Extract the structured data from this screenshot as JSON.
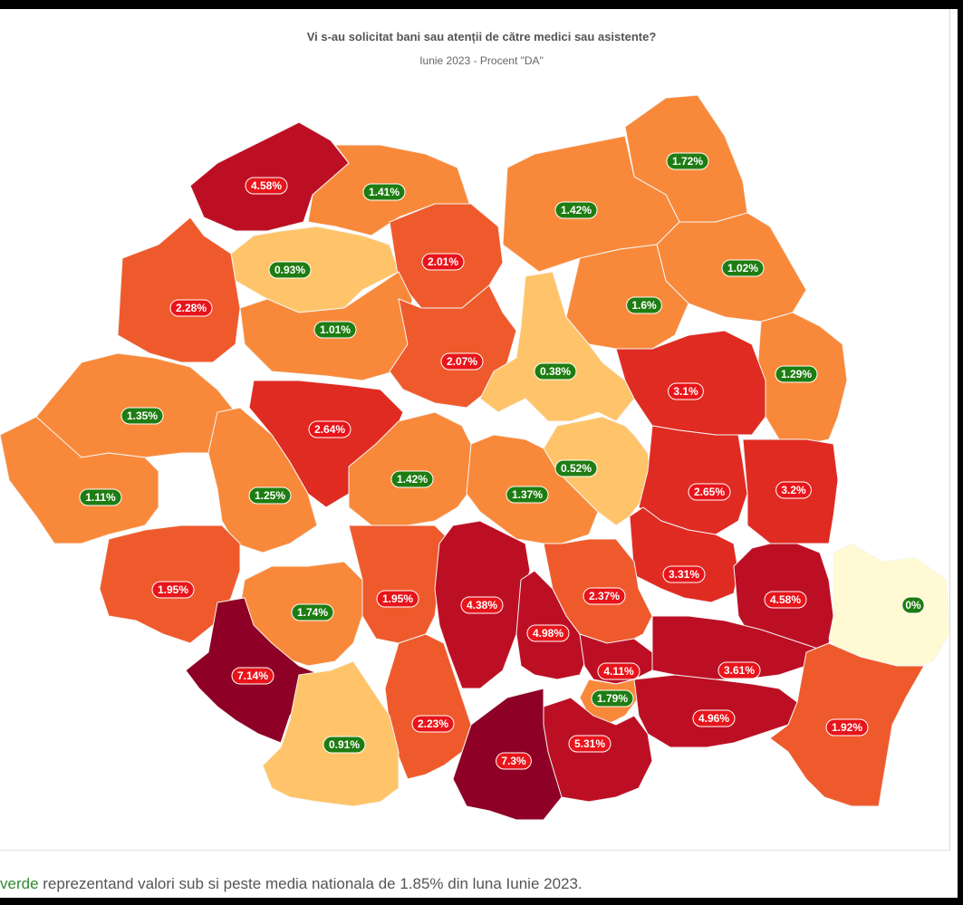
{
  "title": "Vi s-au solicitat bani sau atenții de către medici sau asistente?",
  "subtitle": "Iunie 2023 - Procent \"DA\"",
  "caption": {
    "highlight": "verde",
    "rest": " reprezentand valori sub si peste media nationala de 1.85% din luna Iunie 2023."
  },
  "colors": {
    "above_badge": "#e8141b",
    "below_badge": "#1e7d12",
    "scale": [
      "#fff9d4",
      "#ffc46a",
      "#f9893a",
      "#ef5a2c",
      "#e02b22",
      "#bd0f24",
      "#8e0025"
    ]
  },
  "map_data": {
    "type": "choropleth",
    "region": "Romania",
    "national_average": 1.85,
    "counties": [
      {
        "label": "4.58%",
        "value": 4.58,
        "above": true
      },
      {
        "label": "1.41%",
        "value": 1.41,
        "above": false
      },
      {
        "label": "1.72%",
        "value": 1.72,
        "above": false
      },
      {
        "label": "1.42%",
        "value": 1.42,
        "above": false
      },
      {
        "label": "0.93%",
        "value": 0.93,
        "above": false
      },
      {
        "label": "2.01%",
        "value": 2.01,
        "above": true
      },
      {
        "label": "1.02%",
        "value": 1.02,
        "above": false
      },
      {
        "label": "2.28%",
        "value": 2.28,
        "above": true
      },
      {
        "label": "1.6%",
        "value": 1.6,
        "above": false
      },
      {
        "label": "1.01%",
        "value": 1.01,
        "above": false
      },
      {
        "label": "2.07%",
        "value": 2.07,
        "above": true
      },
      {
        "label": "0.38%",
        "value": 0.38,
        "above": false
      },
      {
        "label": "1.29%",
        "value": 1.29,
        "above": false
      },
      {
        "label": "3.1%",
        "value": 3.1,
        "above": true
      },
      {
        "label": "1.35%",
        "value": 1.35,
        "above": false
      },
      {
        "label": "2.64%",
        "value": 2.64,
        "above": true
      },
      {
        "label": "0.52%",
        "value": 0.52,
        "above": false
      },
      {
        "label": "1.42%",
        "value": 1.42,
        "above": false
      },
      {
        "label": "2.65%",
        "value": 2.65,
        "above": true
      },
      {
        "label": "3.2%",
        "value": 3.2,
        "above": true
      },
      {
        "label": "1.11%",
        "value": 1.11,
        "above": false
      },
      {
        "label": "1.25%",
        "value": 1.25,
        "above": false
      },
      {
        "label": "1.37%",
        "value": 1.37,
        "above": false
      },
      {
        "label": "3.31%",
        "value": 3.31,
        "above": true
      },
      {
        "label": "1.95%",
        "value": 1.95,
        "above": true
      },
      {
        "label": "1.95%",
        "value": 1.95,
        "above": true
      },
      {
        "label": "4.38%",
        "value": 4.38,
        "above": true
      },
      {
        "label": "2.37%",
        "value": 2.37,
        "above": true
      },
      {
        "label": "4.58%",
        "value": 4.58,
        "above": true
      },
      {
        "label": "0%",
        "value": 0,
        "above": false
      },
      {
        "label": "1.74%",
        "value": 1.74,
        "above": false
      },
      {
        "label": "4.98%",
        "value": 4.98,
        "above": true
      },
      {
        "label": "7.14%",
        "value": 7.14,
        "above": true
      },
      {
        "label": "4.11%",
        "value": 4.11,
        "above": true
      },
      {
        "label": "3.61%",
        "value": 3.61,
        "above": true
      },
      {
        "label": "1.79%",
        "value": 1.79,
        "above": false
      },
      {
        "label": "4.96%",
        "value": 4.96,
        "above": true
      },
      {
        "label": "2.23%",
        "value": 2.23,
        "above": true
      },
      {
        "label": "1.92%",
        "value": 1.92,
        "above": true
      },
      {
        "label": "0.91%",
        "value": 0.91,
        "above": false
      },
      {
        "label": "5.31%",
        "value": 5.31,
        "above": true
      },
      {
        "label": "7.3%",
        "value": 7.3,
        "above": true
      }
    ]
  }
}
